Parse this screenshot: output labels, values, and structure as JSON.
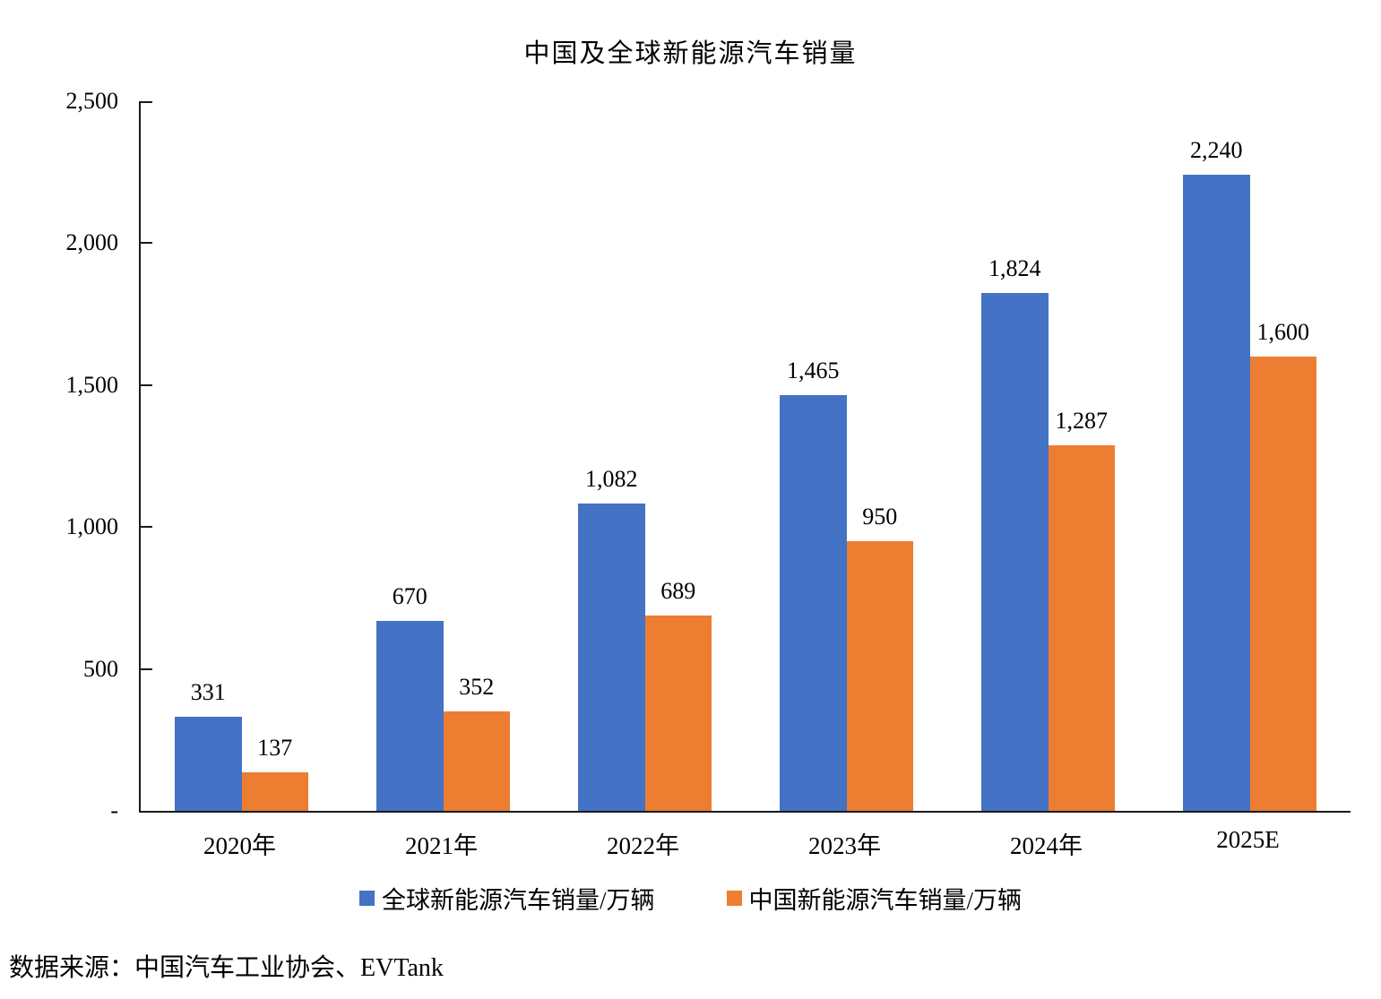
{
  "chart_data": {
    "type": "bar",
    "title": "中国及全球新能源汽车销量",
    "categories": [
      "2020年",
      "2021年",
      "2022年",
      "2023年",
      "2024年",
      "2025E"
    ],
    "series": [
      {
        "name": "全球新能源汽车销量/万辆",
        "color": "#4472C4",
        "values": [
          331,
          670,
          1082,
          1465,
          1824,
          2240
        ],
        "labels": [
          "331",
          "670",
          "1,082",
          "1,465",
          "1,824",
          "2,240"
        ]
      },
      {
        "name": "中国新能源汽车销量/万辆",
        "color": "#ED7D31",
        "values": [
          137,
          352,
          689,
          950,
          1287,
          1600
        ],
        "labels": [
          "137",
          "352",
          "689",
          "950",
          "1,287",
          "1,600"
        ]
      }
    ],
    "ylim": [
      0,
      2500
    ],
    "yticks": [
      {
        "value": 0,
        "label": "-"
      },
      {
        "value": 500,
        "label": "500"
      },
      {
        "value": 1000,
        "label": "1,000"
      },
      {
        "value": 1500,
        "label": "1,500"
      },
      {
        "value": 2000,
        "label": "2,000"
      },
      {
        "value": 2500,
        "label": "2,500"
      }
    ],
    "grid": false,
    "legend_position": "bottom"
  },
  "source": "数据来源：中国汽车工业协会、EVTank"
}
